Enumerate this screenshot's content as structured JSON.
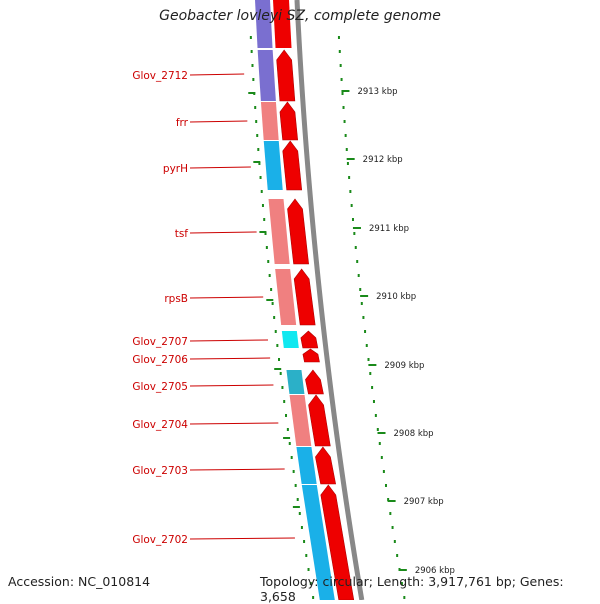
{
  "title": "Geobacter lovleyi SZ, complete genome",
  "accession_text": "Accession: NC_010814",
  "summary_text": "Topology: circular; Length: 3,917,761 bp; Genes: 3,658",
  "colors": {
    "label_red": "#cc0000",
    "tick_green": "#1a8a1a",
    "cds_red": "#ee0000",
    "purple": "#7a6fd0",
    "salmon": "#f08080",
    "sky": "#1ab0e8",
    "cyan": "#10e8f0",
    "backbone": "#888888"
  },
  "genes": [
    {
      "label": "Glov_2712",
      "color": "purple"
    },
    {
      "label": "frr",
      "color": "salmon"
    },
    {
      "label": "pyrH",
      "color": "sky"
    },
    {
      "label": "tsf",
      "color": "salmon"
    },
    {
      "label": "rpsB",
      "color": "salmon"
    },
    {
      "label": "Glov_2707",
      "color": "cyan"
    },
    {
      "label": "Glov_2706",
      "color": "none"
    },
    {
      "label": "Glov_2705",
      "color": "teal"
    },
    {
      "label": "Glov_2704",
      "color": "salmon"
    },
    {
      "label": "Glov_2703",
      "color": "sky"
    },
    {
      "label": "Glov_2702",
      "color": "sky"
    }
  ],
  "scale_ticks": [
    {
      "label": "2913 kbp"
    },
    {
      "label": "2912 kbp"
    },
    {
      "label": "2911 kbp"
    },
    {
      "label": "2910 kbp"
    },
    {
      "label": "2909 kbp"
    },
    {
      "label": "2908 kbp"
    },
    {
      "label": "2907 kbp"
    },
    {
      "label": "2906 kbp"
    }
  ]
}
